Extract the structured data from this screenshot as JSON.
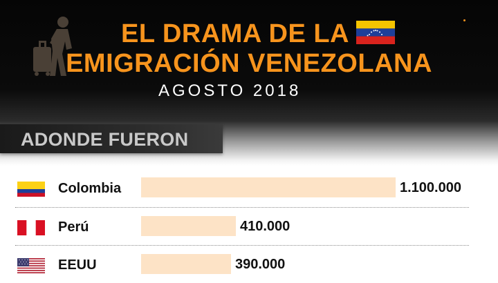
{
  "header": {
    "title_line1": "EL DRAMA DE LA",
    "title_line2": "EMIGRACIÓN VENEZOLANA",
    "subtitle": "AGOSTO 2018",
    "section": "ADONDE FUERON"
  },
  "colors": {
    "accent": "#f7941d",
    "bar": "#fde3c6"
  },
  "chart_data": {
    "type": "bar",
    "orientation": "horizontal",
    "categories": [
      "Colombia",
      "Perú",
      "EEUU"
    ],
    "values": [
      1100000,
      410000,
      390000
    ],
    "value_labels": [
      "1.100.000",
      "410.000",
      "390.000"
    ],
    "icons": [
      "colombia-flag-icon",
      "peru-flag-icon",
      "usa-flag-icon"
    ],
    "xlim": [
      0,
      1100000
    ]
  }
}
